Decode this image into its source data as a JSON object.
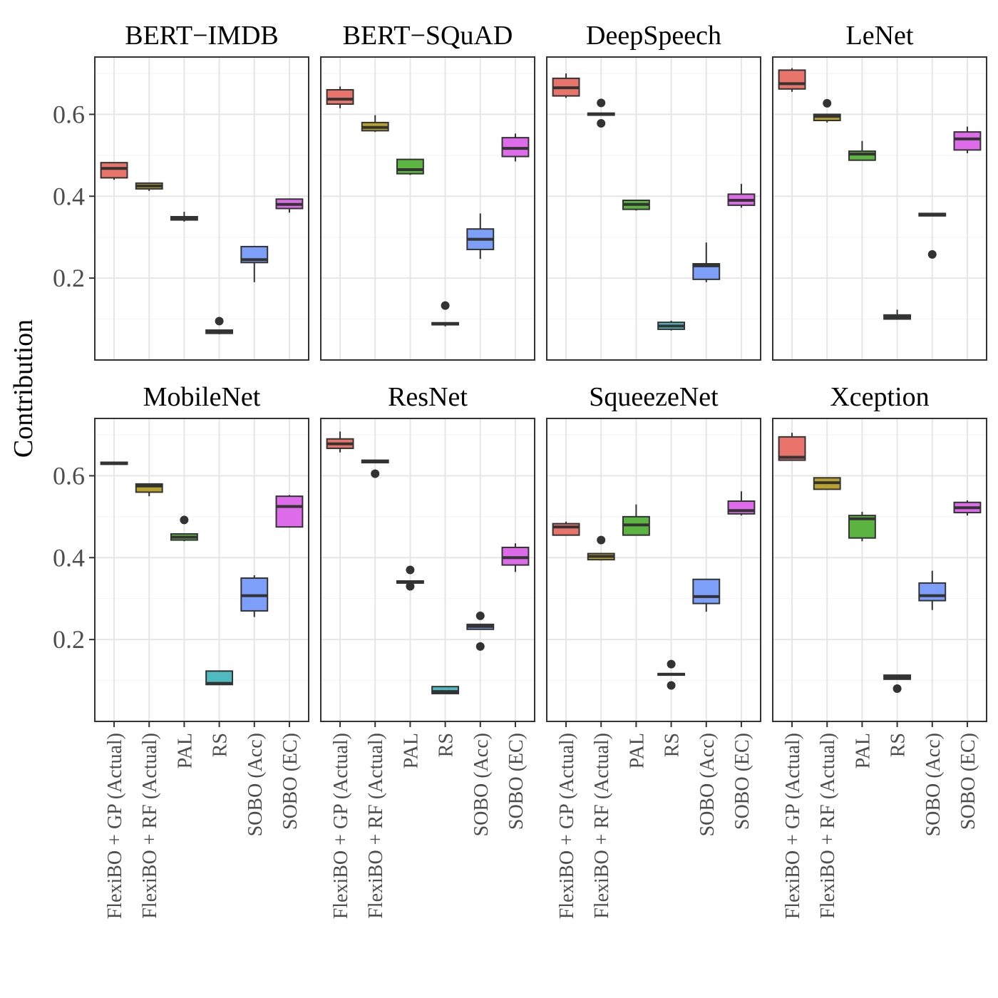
{
  "chart_data": {
    "type": "boxplot",
    "ylabel": "Contribution",
    "ylim": [
      0.0,
      0.74
    ],
    "yticks": [
      0.2,
      0.4,
      0.6
    ],
    "ytick_labels": [
      "0.2",
      "0.4",
      "0.6"
    ],
    "categories": [
      "FlexiBO + GP (Actual)",
      "FlexiBO + RF (Actual)",
      "PAL",
      "RS",
      "SOBO (Acc)",
      "SOBO (EC)"
    ],
    "colors": [
      "#e8746c",
      "#b8a22b",
      "#5bb540",
      "#4fbac0",
      "#7e9ff9",
      "#de6be9"
    ],
    "grid": true,
    "facets": [
      {
        "title": "BERT−IMDB",
        "boxes": [
          {
            "min": 0.44,
            "q1": 0.445,
            "median": 0.468,
            "q3": 0.482,
            "max": 0.482,
            "outliers": []
          },
          {
            "min": 0.413,
            "q1": 0.418,
            "median": 0.425,
            "q3": 0.432,
            "max": 0.432,
            "outliers": []
          },
          {
            "min": 0.338,
            "q1": 0.342,
            "median": 0.345,
            "q3": 0.35,
            "max": 0.362,
            "outliers": []
          },
          {
            "min": 0.063,
            "q1": 0.065,
            "median": 0.068,
            "q3": 0.073,
            "max": 0.073,
            "outliers": [
              0.095
            ]
          },
          {
            "min": 0.19,
            "q1": 0.238,
            "median": 0.245,
            "q3": 0.277,
            "max": 0.277,
            "outliers": []
          },
          {
            "min": 0.36,
            "q1": 0.37,
            "median": 0.38,
            "q3": 0.393,
            "max": 0.393,
            "outliers": []
          }
        ]
      },
      {
        "title": "BERT−SQuAD",
        "boxes": [
          {
            "min": 0.615,
            "q1": 0.625,
            "median": 0.637,
            "q3": 0.66,
            "max": 0.668,
            "outliers": []
          },
          {
            "min": 0.557,
            "q1": 0.56,
            "median": 0.568,
            "q3": 0.58,
            "max": 0.598,
            "outliers": []
          },
          {
            "min": 0.452,
            "q1": 0.455,
            "median": 0.465,
            "q3": 0.49,
            "max": 0.49,
            "outliers": []
          },
          {
            "min": 0.082,
            "q1": 0.086,
            "median": 0.088,
            "q3": 0.091,
            "max": 0.091,
            "outliers": [
              0.133
            ]
          },
          {
            "min": 0.247,
            "q1": 0.27,
            "median": 0.295,
            "q3": 0.32,
            "max": 0.358,
            "outliers": []
          },
          {
            "min": 0.485,
            "q1": 0.497,
            "median": 0.517,
            "q3": 0.543,
            "max": 0.553,
            "outliers": []
          }
        ]
      },
      {
        "title": "DeepSpeech",
        "boxes": [
          {
            "min": 0.64,
            "q1": 0.645,
            "median": 0.665,
            "q3": 0.688,
            "max": 0.7,
            "outliers": []
          },
          {
            "min": 0.598,
            "q1": 0.598,
            "median": 0.6,
            "q3": 0.603,
            "max": 0.603,
            "outliers": [
              0.628,
              0.578
            ]
          },
          {
            "min": 0.365,
            "q1": 0.368,
            "median": 0.38,
            "q3": 0.39,
            "max": 0.39,
            "outliers": []
          },
          {
            "min": 0.072,
            "q1": 0.075,
            "median": 0.083,
            "q3": 0.092,
            "max": 0.096,
            "outliers": []
          },
          {
            "min": 0.19,
            "q1": 0.197,
            "median": 0.23,
            "q3": 0.235,
            "max": 0.287,
            "outliers": []
          },
          {
            "min": 0.372,
            "q1": 0.378,
            "median": 0.39,
            "q3": 0.405,
            "max": 0.43,
            "outliers": []
          }
        ]
      },
      {
        "title": "LeNet",
        "boxes": [
          {
            "min": 0.655,
            "q1": 0.662,
            "median": 0.675,
            "q3": 0.708,
            "max": 0.713,
            "outliers": []
          },
          {
            "min": 0.58,
            "q1": 0.585,
            "median": 0.595,
            "q3": 0.6,
            "max": 0.6,
            "outliers": [
              0.627
            ]
          },
          {
            "min": 0.487,
            "q1": 0.488,
            "median": 0.503,
            "q3": 0.51,
            "max": 0.535,
            "outliers": []
          },
          {
            "min": 0.1,
            "q1": 0.1,
            "median": 0.105,
            "q3": 0.11,
            "max": 0.123,
            "outliers": []
          },
          {
            "min": 0.352,
            "q1": 0.352,
            "median": 0.355,
            "q3": 0.358,
            "max": 0.358,
            "outliers": [
              0.258
            ]
          },
          {
            "min": 0.505,
            "q1": 0.513,
            "median": 0.54,
            "q3": 0.557,
            "max": 0.57,
            "outliers": []
          }
        ]
      },
      {
        "title": "MobileNet",
        "boxes": [
          {
            "min": 0.628,
            "q1": 0.628,
            "median": 0.63,
            "q3": 0.633,
            "max": 0.633,
            "outliers": []
          },
          {
            "min": 0.55,
            "q1": 0.56,
            "median": 0.575,
            "q3": 0.58,
            "max": 0.58,
            "outliers": []
          },
          {
            "min": 0.44,
            "q1": 0.443,
            "median": 0.45,
            "q3": 0.458,
            "max": 0.458,
            "outliers": [
              0.492
            ]
          },
          {
            "min": 0.09,
            "q1": 0.09,
            "median": 0.093,
            "q3": 0.123,
            "max": 0.123,
            "outliers": []
          },
          {
            "min": 0.255,
            "q1": 0.27,
            "median": 0.307,
            "q3": 0.35,
            "max": 0.357,
            "outliers": []
          },
          {
            "min": 0.475,
            "q1": 0.475,
            "median": 0.525,
            "q3": 0.55,
            "max": 0.553,
            "outliers": []
          }
        ]
      },
      {
        "title": "ResNet",
        "boxes": [
          {
            "min": 0.657,
            "q1": 0.667,
            "median": 0.678,
            "q3": 0.69,
            "max": 0.708,
            "outliers": []
          },
          {
            "min": 0.632,
            "q1": 0.632,
            "median": 0.635,
            "q3": 0.638,
            "max": 0.638,
            "outliers": [
              0.605
            ]
          },
          {
            "min": 0.338,
            "q1": 0.338,
            "median": 0.34,
            "q3": 0.343,
            "max": 0.343,
            "outliers": [
              0.37,
              0.33
            ]
          },
          {
            "min": 0.068,
            "q1": 0.068,
            "median": 0.073,
            "q3": 0.085,
            "max": 0.085,
            "outliers": []
          },
          {
            "min": 0.225,
            "q1": 0.225,
            "median": 0.232,
            "q3": 0.237,
            "max": 0.237,
            "outliers": [
              0.258,
              0.183
            ]
          },
          {
            "min": 0.365,
            "q1": 0.382,
            "median": 0.4,
            "q3": 0.425,
            "max": 0.435,
            "outliers": []
          }
        ]
      },
      {
        "title": "SqueezeNet",
        "boxes": [
          {
            "min": 0.455,
            "q1": 0.455,
            "median": 0.475,
            "q3": 0.483,
            "max": 0.488,
            "outliers": []
          },
          {
            "min": 0.393,
            "q1": 0.395,
            "median": 0.403,
            "q3": 0.41,
            "max": 0.41,
            "outliers": [
              0.443
            ]
          },
          {
            "min": 0.455,
            "q1": 0.455,
            "median": 0.48,
            "q3": 0.5,
            "max": 0.53,
            "outliers": []
          },
          {
            "min": 0.113,
            "q1": 0.113,
            "median": 0.115,
            "q3": 0.117,
            "max": 0.117,
            "outliers": [
              0.14,
              0.088
            ]
          },
          {
            "min": 0.268,
            "q1": 0.288,
            "median": 0.305,
            "q3": 0.347,
            "max": 0.347,
            "outliers": []
          },
          {
            "min": 0.503,
            "q1": 0.507,
            "median": 0.515,
            "q3": 0.538,
            "max": 0.562,
            "outliers": []
          }
        ]
      },
      {
        "title": "Xception",
        "boxes": [
          {
            "min": 0.638,
            "q1": 0.638,
            "median": 0.645,
            "q3": 0.695,
            "max": 0.705,
            "outliers": []
          },
          {
            "min": 0.567,
            "q1": 0.567,
            "median": 0.583,
            "q3": 0.595,
            "max": 0.595,
            "outliers": []
          },
          {
            "min": 0.44,
            "q1": 0.448,
            "median": 0.495,
            "q3": 0.503,
            "max": 0.512,
            "outliers": []
          },
          {
            "min": 0.103,
            "q1": 0.103,
            "median": 0.108,
            "q3": 0.113,
            "max": 0.113,
            "outliers": [
              0.08
            ]
          },
          {
            "min": 0.272,
            "q1": 0.295,
            "median": 0.307,
            "q3": 0.338,
            "max": 0.368,
            "outliers": []
          },
          {
            "min": 0.503,
            "q1": 0.51,
            "median": 0.522,
            "q3": 0.535,
            "max": 0.54,
            "outliers": []
          }
        ]
      }
    ]
  }
}
